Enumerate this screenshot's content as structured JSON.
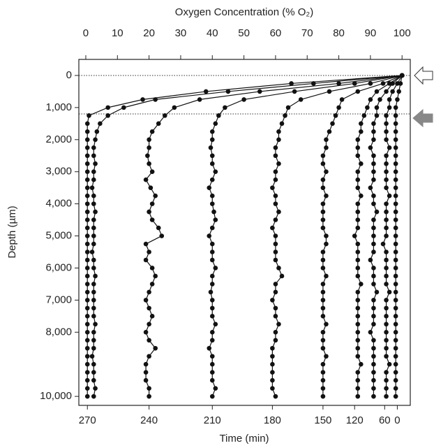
{
  "chart_data": {
    "type": "line",
    "x_label": "Oxygen Concentration (% O₂)",
    "y_label": "Depth (µm)",
    "x2_label": "Time (min)",
    "xlim": [
      -2.2,
      102.6
    ],
    "xticks": [
      0,
      10,
      20,
      30,
      40,
      50,
      60,
      70,
      80,
      90,
      100
    ],
    "ylim": [
      -500,
      10280
    ],
    "y_inverted": true,
    "yticks": [
      0,
      {
        "value": 1000,
        "label": "1,000"
      },
      {
        "value": 2000,
        "label": "2,000"
      },
      {
        "value": 3000,
        "label": "3,000"
      },
      {
        "value": 4000,
        "label": "4,000"
      },
      {
        "value": 5000,
        "label": "5,000"
      },
      {
        "value": 6000,
        "label": "6,000"
      },
      {
        "value": 7000,
        "label": "7,000"
      },
      {
        "value": 8000,
        "label": "8,000"
      },
      {
        "value": 10000,
        "label": "10,000"
      }
    ],
    "x2ticks": [
      {
        "value": 0.5,
        "label": "270"
      },
      {
        "value": 20,
        "label": "240"
      },
      {
        "value": 40,
        "label": "210"
      },
      {
        "value": 59,
        "label": "180"
      },
      {
        "value": 75,
        "label": "150"
      },
      {
        "value": 85,
        "label": "120"
      },
      {
        "value": 94.5,
        "label": "60"
      },
      {
        "value": 98.5,
        "label": "0"
      }
    ],
    "reference_lines": [
      0,
      1200
    ],
    "depth": [
      0,
      250,
      500,
      750,
      1000,
      1250,
      1500,
      1750,
      2000,
      2250,
      2500,
      2750,
      3000,
      3250,
      3500,
      3750,
      4000,
      4250,
      4500,
      4750,
      5000,
      5250,
      5500,
      5750,
      6000,
      6250,
      6500,
      6750,
      7000,
      7250,
      7500,
      7750,
      8000,
      8250,
      8500,
      8750,
      9000,
      9250,
      9500,
      9750,
      10000
    ],
    "series": [
      {
        "color": "#111111",
        "values": [
          100,
          65,
          38,
          18,
          7,
          1,
          0.5,
          0.5,
          0.5,
          0.5,
          0.5,
          0.5,
          0.5,
          0.5,
          0.5,
          0.5,
          0.5,
          0.5,
          0.5,
          0.5,
          0.5,
          0.5,
          0.5,
          0.5,
          0.5,
          0.5,
          0.5,
          0.5,
          0.5,
          0.5,
          0.5,
          0.5,
          0.5,
          0.5,
          0.5,
          0.5,
          0.5,
          0.5,
          0.5,
          0.5,
          0.5
        ]
      },
      {
        "color": "#111111",
        "values": [
          100,
          72,
          45,
          22,
          12,
          7,
          4.5,
          3.5,
          3,
          2.5,
          2.5,
          3,
          2.5,
          2.5,
          2,
          2.5,
          2.5,
          3,
          2.5,
          2.5,
          2.5,
          2.5,
          2,
          2.5,
          2.5,
          3,
          2.5,
          2.5,
          2.5,
          2.5,
          2.5,
          3,
          2.5,
          2.5,
          2.5,
          2,
          2.5,
          2.5,
          2.5,
          3,
          2.5
        ]
      },
      {
        "color": "#111111",
        "values": [
          100,
          80,
          55,
          36,
          28,
          25,
          23,
          21,
          20,
          20,
          19.5,
          20,
          21,
          19,
          20.5,
          22,
          21,
          20,
          21,
          23,
          24,
          19,
          20,
          19,
          21,
          22,
          21,
          20,
          19,
          20,
          21,
          20,
          19,
          20,
          22,
          20,
          19,
          19,
          19,
          20,
          20
        ]
      },
      {
        "color": "#111111",
        "values": [
          100,
          85,
          66,
          50,
          44,
          42,
          41,
          40,
          40,
          39.5,
          40,
          40,
          41,
          40,
          39,
          40,
          40,
          40.5,
          41,
          40,
          39,
          40,
          40,
          40,
          41,
          40,
          40,
          39.5,
          40,
          40,
          40,
          41,
          40,
          40,
          39,
          40,
          40,
          40,
          40,
          41,
          40
        ]
      },
      {
        "color": "#111111",
        "values": [
          100,
          90,
          77,
          68,
          64,
          63,
          62,
          61,
          61,
          60,
          60,
          61,
          60,
          60,
          59,
          60,
          60,
          61,
          60,
          59,
          60,
          60,
          60,
          60,
          61,
          62,
          60,
          60,
          59,
          60,
          60,
          61,
          60,
          60,
          59,
          59,
          59,
          59,
          59,
          59,
          60
        ]
      },
      {
        "color": "#111111",
        "values": [
          100,
          94,
          86,
          81,
          80,
          79,
          78,
          77,
          76,
          76,
          75,
          75,
          76,
          75,
          75,
          76,
          75,
          75,
          75,
          75,
          76,
          76,
          75,
          75,
          75,
          76,
          75,
          75,
          75,
          75,
          75,
          76,
          75,
          75,
          75,
          76,
          75,
          75,
          75,
          75,
          75
        ]
      },
      {
        "color": "#111111",
        "values": [
          100,
          96,
          92,
          90,
          89,
          88,
          87,
          87,
          86,
          86,
          86,
          87,
          86,
          86,
          86,
          87,
          86,
          86,
          86,
          86,
          85,
          86,
          86,
          86,
          86,
          86,
          87,
          86,
          86,
          86,
          86,
          86,
          86,
          86,
          86,
          86,
          87,
          86,
          86,
          86,
          86
        ]
      },
      {
        "color": "#111111",
        "values": [
          100,
          97,
          95,
          93,
          92,
          92,
          91,
          91,
          91,
          90,
          91,
          91,
          91,
          91,
          90,
          91,
          91,
          92,
          91,
          91,
          91,
          91,
          91,
          90,
          91,
          91,
          91,
          92,
          91,
          91,
          91,
          91,
          90,
          91,
          91,
          91,
          91,
          91,
          91,
          91,
          91
        ]
      },
      {
        "color": "#111111",
        "values": [
          100,
          98.5,
          97,
          96,
          96,
          95,
          95,
          95,
          95,
          96,
          95,
          95,
          95,
          95,
          95,
          96,
          95,
          95,
          95,
          95,
          95,
          94,
          95,
          95,
          95,
          95,
          95,
          96,
          95,
          95,
          95,
          95,
          95,
          95,
          95,
          95,
          96,
          95,
          95,
          95,
          95
        ]
      },
      {
        "color": "#111111",
        "values": [
          100,
          99.5,
          99,
          98.5,
          98,
          98,
          98,
          98,
          98,
          98,
          98,
          98,
          98,
          98,
          98,
          98,
          98,
          98,
          98,
          98,
          98,
          98,
          98,
          98,
          98,
          98,
          98,
          98,
          98,
          98,
          98,
          98,
          98,
          98,
          98,
          98,
          98,
          98,
          98,
          98,
          98
        ]
      }
    ]
  }
}
